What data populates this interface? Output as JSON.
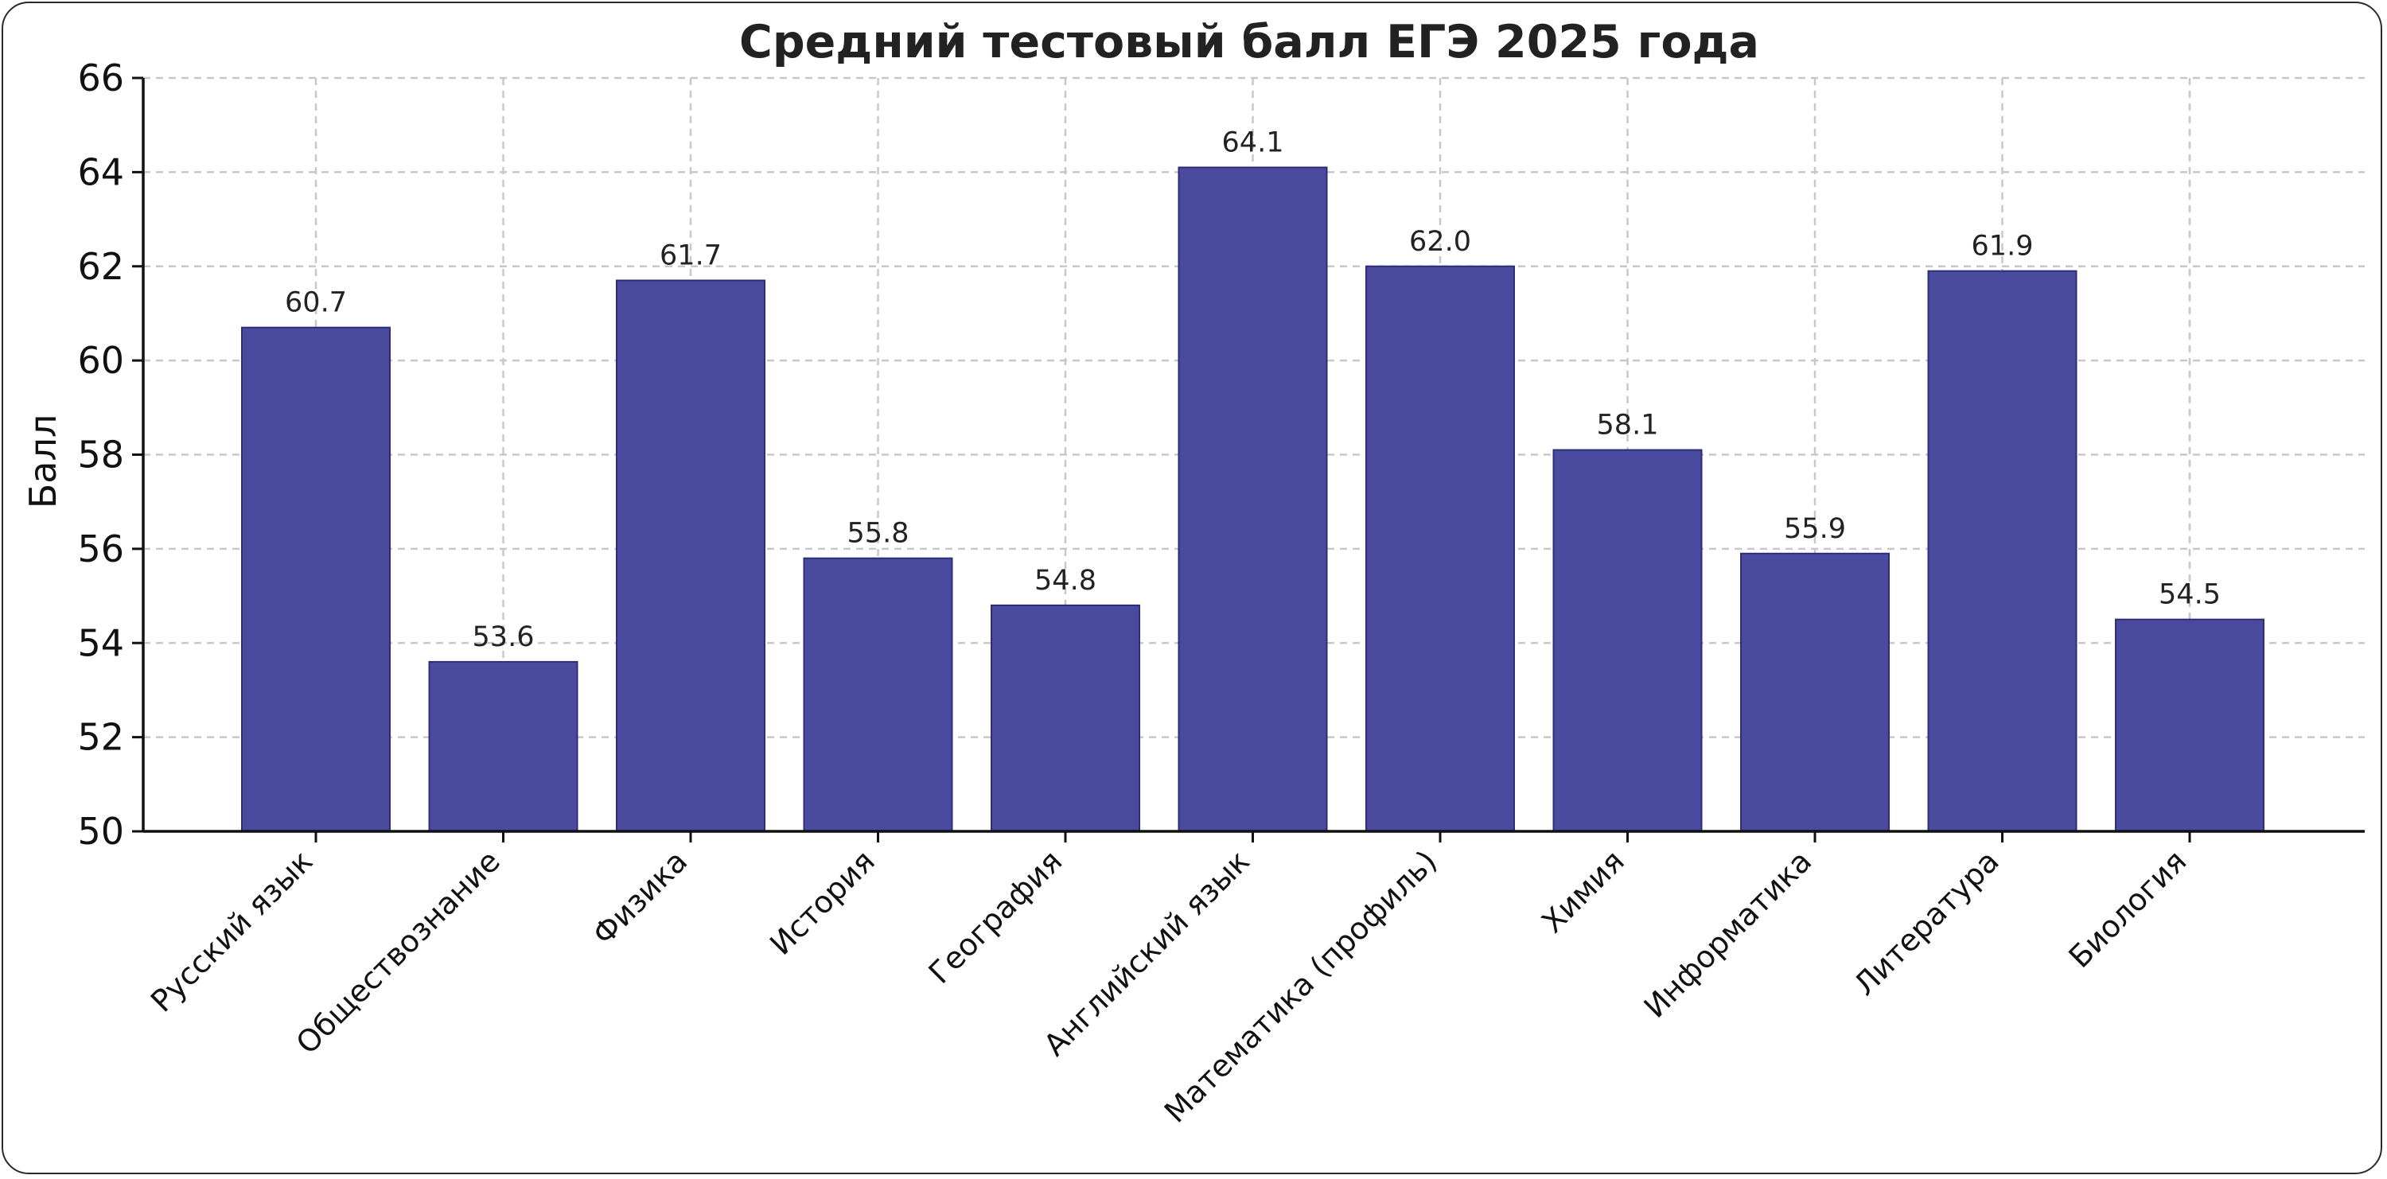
{
  "chart_data": {
    "type": "bar",
    "title": "Средний тестовый балл ЕГЭ 2025 года",
    "xlabel": "",
    "ylabel": "Балл",
    "ylim": [
      50,
      66
    ],
    "yticks": [
      50,
      52,
      54,
      56,
      58,
      60,
      62,
      64,
      66
    ],
    "grid": true,
    "categories": [
      "Русский язык",
      "Обществознание",
      "Физика",
      "История",
      "География",
      "Английский язык",
      "Математика (профиль)",
      "Химия",
      "Информатика",
      "Литература",
      "Биология"
    ],
    "values": [
      60.7,
      53.6,
      61.7,
      55.8,
      54.8,
      64.1,
      62.0,
      58.1,
      55.9,
      61.9,
      54.5
    ],
    "value_labels": [
      "60.7",
      "53.6",
      "61.7",
      "55.8",
      "54.8",
      "64.1",
      "62.0",
      "58.1",
      "55.9",
      "61.9",
      "54.5"
    ],
    "colors": {
      "bar": "#4a4a9e",
      "bar_edge": "#2e2e78",
      "grid": "#c8c8c8",
      "axis": "#111111"
    }
  }
}
